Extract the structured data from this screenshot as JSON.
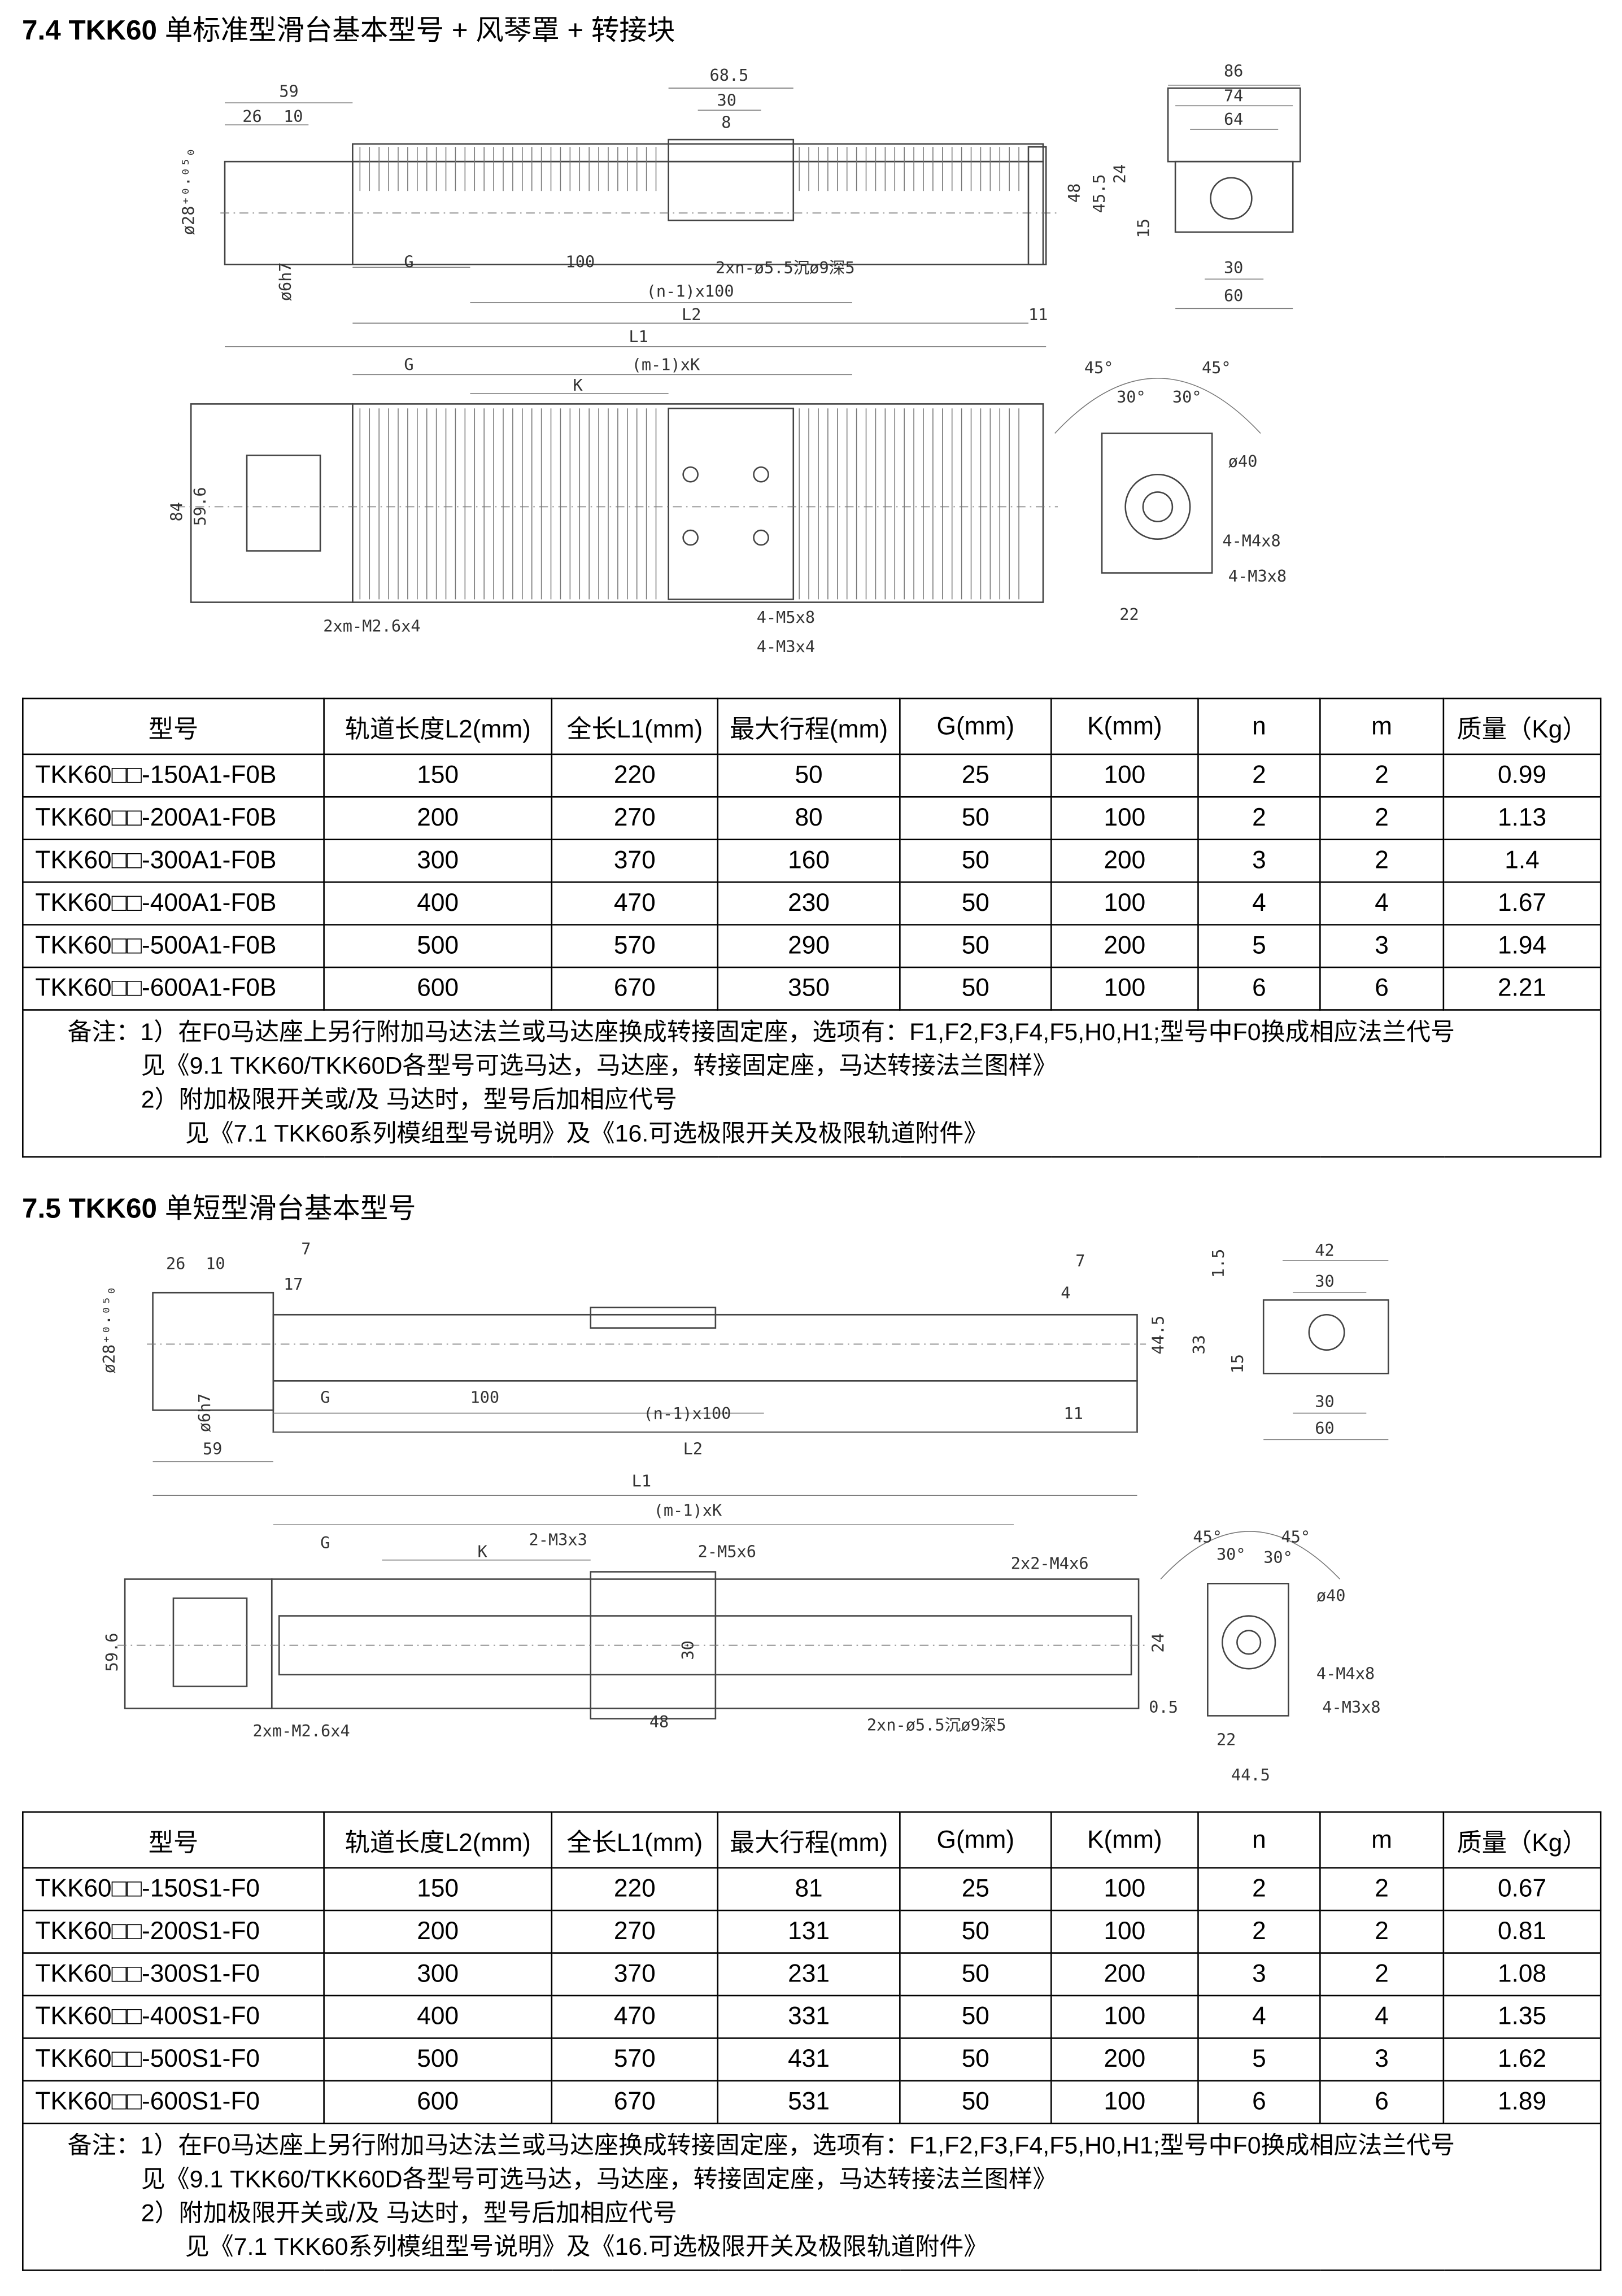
{
  "section1": {
    "title_bold": "7.4 TKK60",
    "title_rest": " 单标准型滑台基本型号 + 风琴罩 + 转接块",
    "dims": {
      "d59": "59",
      "d26": "26",
      "d10": "10",
      "d68_5": "68.5",
      "d30a": "30",
      "d8": "8",
      "d86": "86",
      "d74": "74",
      "d64": "64",
      "d48": "48",
      "d45_5": "45.5",
      "d24": "24",
      "d15": "15",
      "d30b": "30",
      "d60": "60",
      "dia28": "ø28⁺⁰·⁰⁵₀",
      "dia6": "ø6h7",
      "G": "G",
      "d100": "100",
      "hole": "2xn-ø5.5沉ø9深5",
      "n100": "(n-1)x100",
      "L2": "L2",
      "d11": "11",
      "L1": "L1",
      "G2": "G",
      "mK": "(m-1)xK",
      "K": "K",
      "d84": "84",
      "d59_6": "59.6",
      "m26": "2xm-M2.6x4",
      "m5": "4-M5x8",
      "m3": "4-M3x4",
      "a45l": "45°",
      "a45r": "45°",
      "a30l": "30°",
      "a30r": "30°",
      "dia40": "ø40",
      "m4x8": "4-M4x8",
      "m3x8": "4-M3x8",
      "d22": "22"
    },
    "table": {
      "headers": [
        "型号",
        "轨道长度L2(mm)",
        "全长L1(mm)",
        "最大行程(mm)",
        "G(mm)",
        "K(mm)",
        "n",
        "m",
        "质量（Kg）"
      ],
      "rows": [
        [
          "TKK60□□-150A1-F0B",
          "150",
          "220",
          "50",
          "25",
          "100",
          "2",
          "2",
          "0.99"
        ],
        [
          "TKK60□□-200A1-F0B",
          "200",
          "270",
          "80",
          "50",
          "100",
          "2",
          "2",
          "1.13"
        ],
        [
          "TKK60□□-300A1-F0B",
          "300",
          "370",
          "160",
          "50",
          "200",
          "3",
          "2",
          "1.4"
        ],
        [
          "TKK60□□-400A1-F0B",
          "400",
          "470",
          "230",
          "50",
          "100",
          "4",
          "4",
          "1.67"
        ],
        [
          "TKK60□□-500A1-F0B",
          "500",
          "570",
          "290",
          "50",
          "200",
          "5",
          "3",
          "1.94"
        ],
        [
          "TKK60□□-600A1-F0B",
          "600",
          "670",
          "350",
          "50",
          "100",
          "6",
          "6",
          "2.21"
        ]
      ],
      "notes": [
        "备注：1）在F0马达座上另行附加马达法兰或马达座换成转接固定座，选项有：F1,F2,F3,F4,F5,H0,H1;型号中F0换成相应法兰代号",
        "见《9.1 TKK60/TKK60D各型号可选马达，马达座，转接固定座，马达转接法兰图样》",
        "2）附加极限开关或/及 马达时，型号后加相应代号",
        "见《7.1 TKK60系列模组型号说明》及《16.可选极限开关及极限轨道附件》"
      ]
    }
  },
  "section2": {
    "title_bold": "7.5 TKK60",
    "title_rest": " 单短型滑台基本型号",
    "dims": {
      "d26": "26",
      "d10": "10",
      "d7a": "7",
      "d17": "17",
      "d7b": "7",
      "d4": "4",
      "d44_5": "44.5",
      "d33": "33",
      "d1_5": "1.5",
      "d15": "15",
      "d42": "42",
      "d30a": "30",
      "d30b": "30",
      "d60": "60",
      "dia28": "ø28⁺⁰·⁰⁵₀",
      "dia6": "ø6h7",
      "d59": "59",
      "G": "G",
      "d100": "100",
      "n100": "(n-1)x100",
      "d11": "11",
      "L2": "L2",
      "L1": "L1",
      "mK": "(m-1)xK",
      "G2": "G",
      "K": "K",
      "m3x3": "2-M3x3",
      "m5x6": "2-M5x6",
      "m4x6": "2x2-M4x6",
      "d59_6": "59.6",
      "d30c": "30",
      "d24": "24",
      "d0_5": "0.5",
      "m26": "2xm-M2.6x4",
      "d48": "48",
      "hole": "2xn-ø5.5沉ø9深5",
      "a45l": "45°",
      "a45r": "45°",
      "a30l": "30°",
      "a30r": "30°",
      "dia40": "ø40",
      "m4x8": "4-M4x8",
      "m3x8": "4-M3x8",
      "d22": "22",
      "d44_5b": "44.5"
    },
    "table": {
      "headers": [
        "型号",
        "轨道长度L2(mm)",
        "全长L1(mm)",
        "最大行程(mm)",
        "G(mm)",
        "K(mm)",
        "n",
        "m",
        "质量（Kg）"
      ],
      "rows": [
        [
          "TKK60□□-150S1-F0",
          "150",
          "220",
          "81",
          "25",
          "100",
          "2",
          "2",
          "0.67"
        ],
        [
          "TKK60□□-200S1-F0",
          "200",
          "270",
          "131",
          "50",
          "100",
          "2",
          "2",
          "0.81"
        ],
        [
          "TKK60□□-300S1-F0",
          "300",
          "370",
          "231",
          "50",
          "200",
          "3",
          "2",
          "1.08"
        ],
        [
          "TKK60□□-400S1-F0",
          "400",
          "470",
          "331",
          "50",
          "100",
          "4",
          "4",
          "1.35"
        ],
        [
          "TKK60□□-500S1-F0",
          "500",
          "570",
          "431",
          "50",
          "200",
          "5",
          "3",
          "1.62"
        ],
        [
          "TKK60□□-600S1-F0",
          "600",
          "670",
          "531",
          "50",
          "100",
          "6",
          "6",
          "1.89"
        ]
      ],
      "notes": [
        "备注：1）在F0马达座上另行附加马达法兰或马达座换成转接固定座，选项有：F1,F2,F3,F4,F5,H0,H1;型号中F0换成相应法兰代号",
        "见《9.1 TKK60/TKK60D各型号可选马达，马达座，转接固定座，马达转接法兰图样》",
        "2）附加极限开关或/及 马达时，型号后加相应代号",
        "见《7.1 TKK60系列模组型号说明》及《16.可选极限开关及极限轨道附件》"
      ]
    }
  }
}
